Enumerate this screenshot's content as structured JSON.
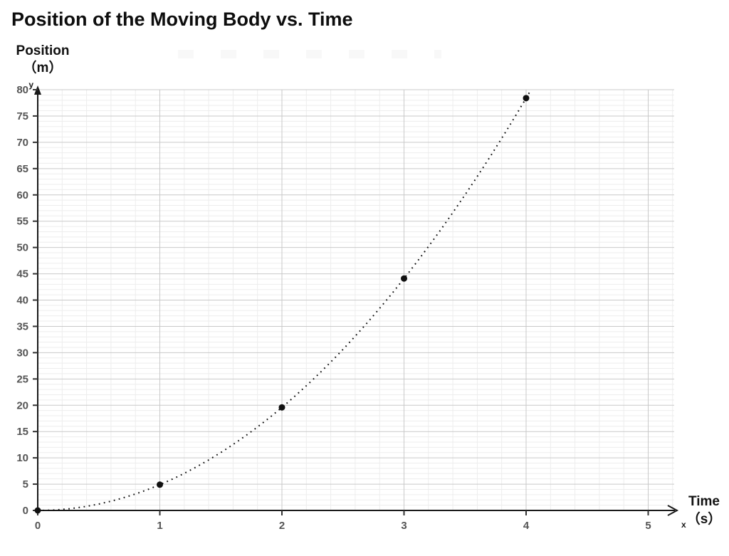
{
  "header": {
    "title": "Position of the Moving Body vs. Time"
  },
  "axis_labels": {
    "y_line1": "Position",
    "y_line2": "（m）",
    "x_line1": "Time",
    "x_line2": "（s）"
  },
  "chart_data": {
    "type": "line",
    "title": "Position of the Moving Body vs. Time",
    "xlabel": "Time (s)",
    "ylabel": "Position (m)",
    "x": [
      0,
      1,
      2,
      3,
      4
    ],
    "y": [
      0,
      4.9,
      19.6,
      44.1,
      78.4
    ],
    "series": [
      {
        "name": "position",
        "values": [
          0,
          4.9,
          19.6,
          44.1,
          78.4
        ]
      }
    ],
    "curve": {
      "equation": "y = 4.9t^2",
      "coefficient": 4.9,
      "t_start": 0,
      "t_end": 4.05,
      "style": "dotted"
    },
    "x_ticks": [
      0,
      1,
      2,
      3,
      4,
      5
    ],
    "y_ticks": [
      0,
      5,
      10,
      15,
      20,
      25,
      30,
      35,
      40,
      45,
      50,
      55,
      60,
      65,
      70,
      75,
      80
    ],
    "xlim": [
      0,
      5.2
    ],
    "ylim": [
      0,
      80
    ],
    "minor_grid_step_x": 0.2,
    "minor_grid_step_y": 1,
    "grid": true,
    "legend": false,
    "marker": "filled-circle",
    "marker_radius": 4.5,
    "axis_letters": {
      "x": "x",
      "y": "y"
    },
    "colors": {
      "background": "#ffffff",
      "curve": "#111111",
      "marker": "#111111",
      "axis": "#1a1a1a",
      "grid_major": "#c9c9c9",
      "grid_minor": "#ededed",
      "tick_label": "#555555",
      "title": "#0d0d0d"
    }
  }
}
